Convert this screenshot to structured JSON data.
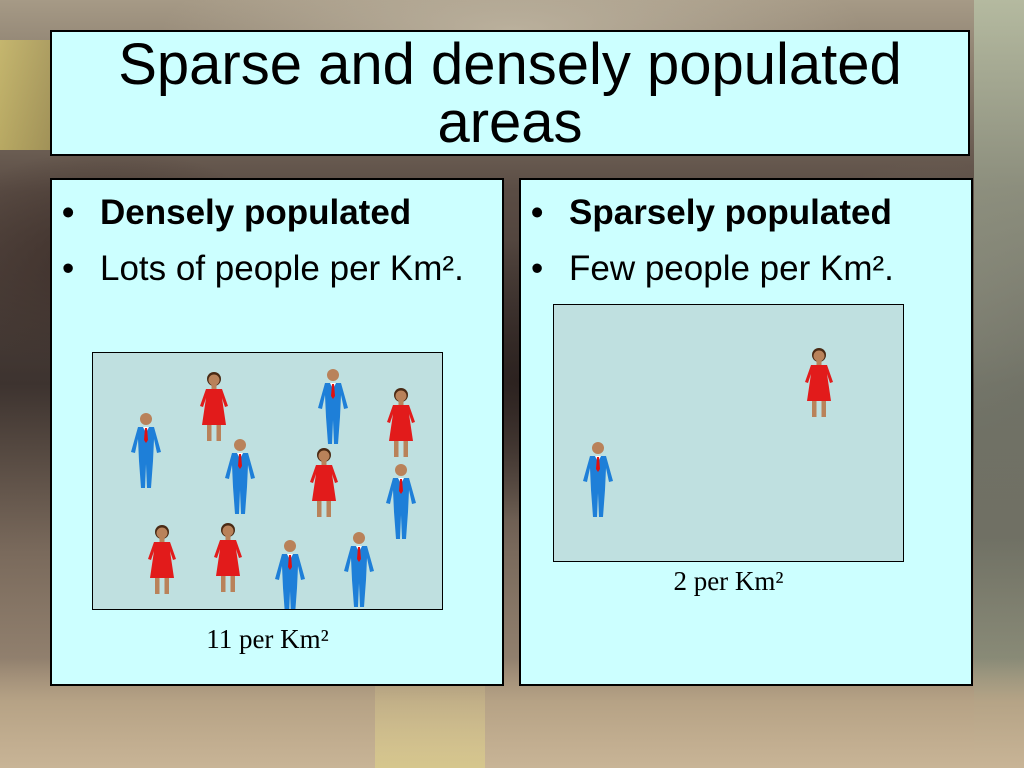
{
  "title": "Sparse and densely populated areas",
  "dense": {
    "heading": "Densely populated",
    "description": "Lots of people per Km².",
    "caption": "11 per Km²"
  },
  "sparse": {
    "heading": "Sparsely populated",
    "description": "Few people per Km².",
    "caption": "2 per Km²"
  },
  "colors": {
    "panel_background": "#ccffff",
    "map_background": "#bfe0e0",
    "man_suit": "#1e7fd8",
    "man_tie": "#e01010",
    "woman_dress": "#e21b1b",
    "skin": "#b9825a",
    "hair": "#4a2a14"
  },
  "icons": {
    "man": "man-figure-icon",
    "woman": "woman-figure-icon"
  }
}
